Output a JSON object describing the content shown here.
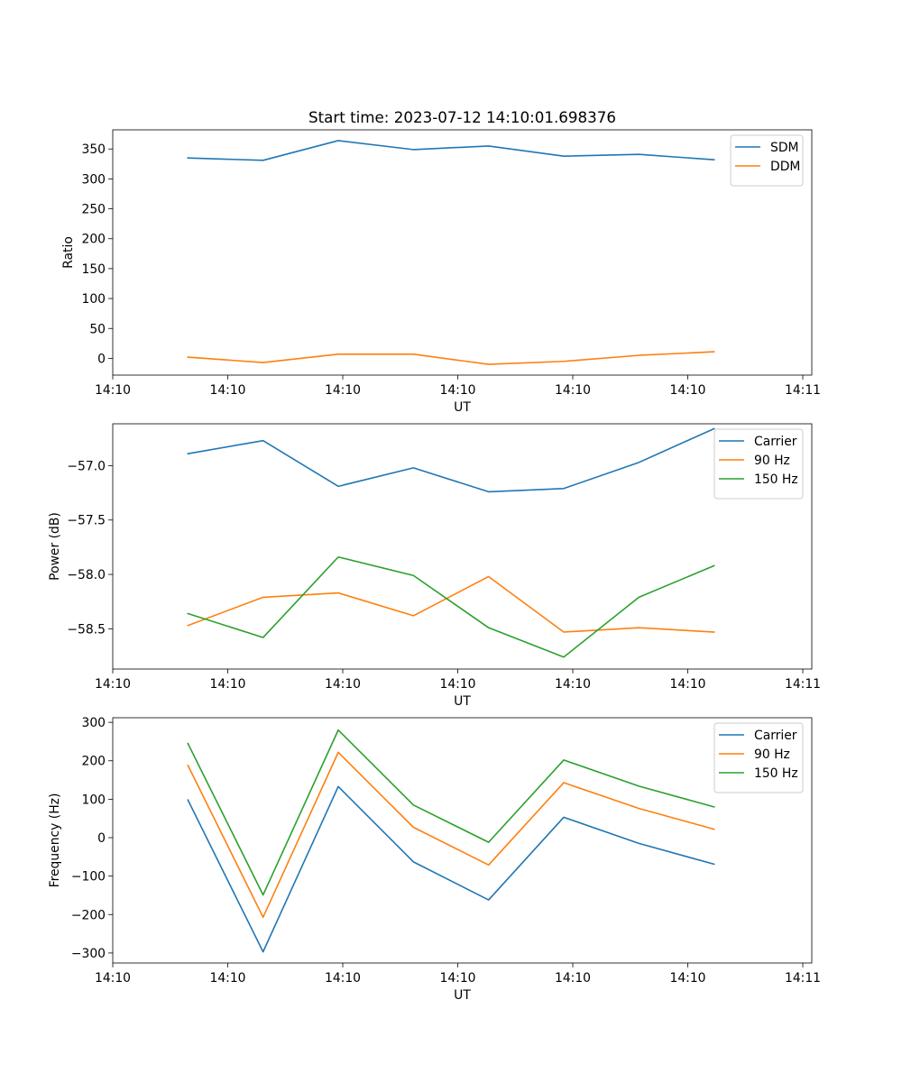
{
  "title": "Start time: 2023-07-12 14:10:01.698376",
  "colors": {
    "blue": "#1f77b4",
    "orange": "#ff7f0e",
    "green": "#2ca02c"
  },
  "chart_data": [
    {
      "type": "line",
      "title": "Start time: 2023-07-12 14:10:01.698376",
      "xlabel": "UT",
      "ylabel": "Ratio",
      "x": [
        1,
        2,
        3,
        4,
        5,
        6,
        7,
        8
      ],
      "xlim": [
        0,
        9.3
      ],
      "xticks": [
        0.0,
        1.53,
        3.06,
        4.59,
        6.12,
        7.65,
        9.18
      ],
      "xticklabels": [
        "14:10",
        "14:10",
        "14:10",
        "14:10",
        "14:10",
        "14:10",
        "14:11"
      ],
      "ylim": [
        -28,
        382
      ],
      "yticks": [
        0,
        50,
        100,
        150,
        200,
        250,
        300,
        350
      ],
      "yticklabels": [
        "0",
        "50",
        "100",
        "150",
        "200",
        "250",
        "300",
        "350"
      ],
      "legend": "top-right",
      "series": [
        {
          "name": "SDM",
          "color": "#1f77b4",
          "values": [
            335,
            331,
            364,
            349,
            355,
            338,
            341,
            332
          ]
        },
        {
          "name": "DDM",
          "color": "#ff7f0e",
          "values": [
            2,
            -7,
            7,
            7,
            -10,
            -5,
            5,
            11
          ]
        }
      ]
    },
    {
      "type": "line",
      "xlabel": "UT",
      "ylabel": "Power (dB)",
      "x": [
        1,
        2,
        3,
        4,
        5,
        6,
        7,
        8
      ],
      "xlim": [
        0,
        9.3
      ],
      "xticks": [
        0.0,
        1.53,
        3.06,
        4.59,
        6.12,
        7.65,
        9.18
      ],
      "xticklabels": [
        "14:10",
        "14:10",
        "14:10",
        "14:10",
        "14:10",
        "14:10",
        "14:11"
      ],
      "ylim": [
        -58.87,
        -56.615
      ],
      "yticks": [
        -58.5,
        -58.0,
        -57.5,
        -57.0
      ],
      "yticklabels": [
        "−58.5",
        "−58.0",
        "−57.5",
        "−57.0"
      ],
      "legend": "top-right",
      "series": [
        {
          "name": "Carrier",
          "color": "#1f77b4",
          "values": [
            -56.89,
            -56.77,
            -57.19,
            -57.02,
            -57.24,
            -57.21,
            -56.97,
            -56.66
          ]
        },
        {
          "name": "90 Hz",
          "color": "#ff7f0e",
          "values": [
            -58.47,
            -58.21,
            -58.17,
            -58.38,
            -58.02,
            -58.53,
            -58.49,
            -58.53
          ]
        },
        {
          "name": "150 Hz",
          "color": "#2ca02c",
          "values": [
            -58.36,
            -58.58,
            -57.84,
            -58.01,
            -58.49,
            -58.76,
            -58.21,
            -57.92
          ]
        }
      ]
    },
    {
      "type": "line",
      "xlabel": "UT",
      "ylabel": "Frequency (Hz)",
      "x": [
        1,
        2,
        3,
        4,
        5,
        6,
        7,
        8
      ],
      "xlim": [
        0,
        9.3
      ],
      "xticks": [
        0.0,
        1.53,
        3.06,
        4.59,
        6.12,
        7.65,
        9.18
      ],
      "xticklabels": [
        "14:10",
        "14:10",
        "14:10",
        "14:10",
        "14:10",
        "14:10",
        "14:11"
      ],
      "ylim": [
        -326,
        312
      ],
      "yticks": [
        -300,
        -200,
        -100,
        0,
        100,
        200,
        300
      ],
      "yticklabels": [
        "−300",
        "−200",
        "−100",
        "0",
        "100",
        "200",
        "300"
      ],
      "legend": "top-right",
      "series": [
        {
          "name": "Carrier",
          "color": "#1f77b4",
          "values": [
            98,
            -297,
            133,
            -63,
            -162,
            53,
            -15,
            -69
          ]
        },
        {
          "name": "90 Hz",
          "color": "#ff7f0e",
          "values": [
            188,
            -207,
            222,
            27,
            -71,
            143,
            76,
            22
          ]
        },
        {
          "name": "150 Hz",
          "color": "#2ca02c",
          "values": [
            245,
            -149,
            280,
            85,
            -12,
            202,
            134,
            80
          ]
        }
      ]
    }
  ]
}
